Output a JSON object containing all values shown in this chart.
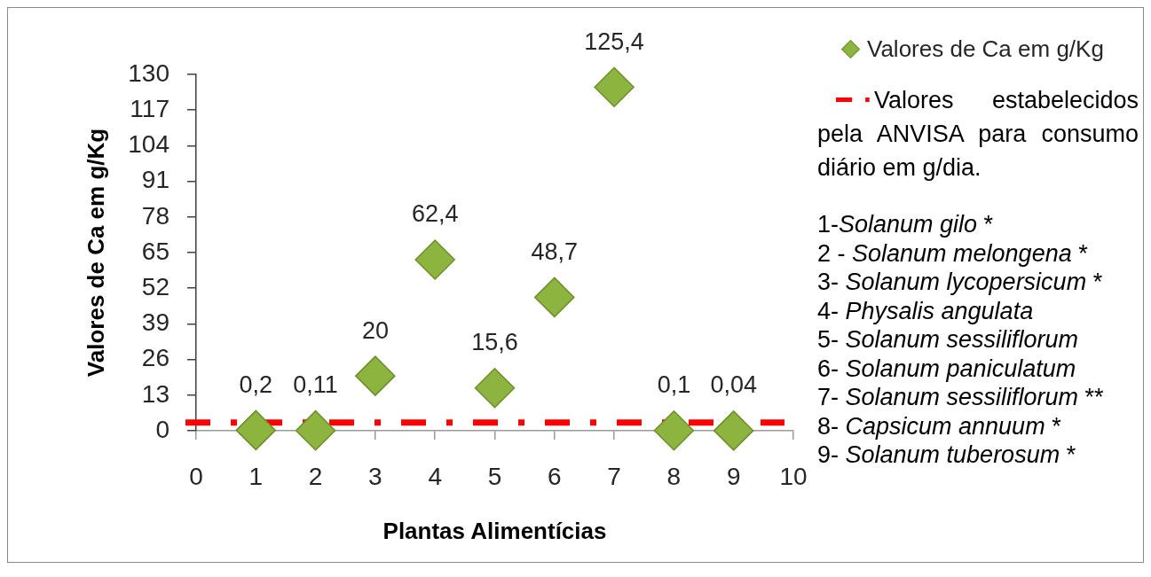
{
  "chart_data": {
    "type": "scatter",
    "xlabel": "Plantas Alimentícias",
    "ylabel": "Valores de Ca em g/Kg",
    "x": [
      1,
      2,
      3,
      4,
      5,
      6,
      7,
      8,
      9
    ],
    "series": [
      {
        "name": "Valores de Ca em g/Kg",
        "color": "#8db43e",
        "values": [
          0.2,
          0.11,
          20,
          62.4,
          15.6,
          48.7,
          125.4,
          0.1,
          0.04
        ],
        "value_labels": [
          "0,2",
          "0,11",
          "20",
          "62,4",
          "15,6",
          "48,7",
          "125,4",
          "0,1",
          "0,04"
        ]
      }
    ],
    "marker": "diamond",
    "xlim": [
      0,
      10
    ],
    "xticks": [
      0,
      1,
      2,
      3,
      4,
      5,
      6,
      7,
      8,
      9,
      10
    ],
    "ylim": [
      0,
      130
    ],
    "yticks": [
      0,
      13,
      26,
      39,
      52,
      65,
      78,
      91,
      104,
      117,
      130
    ],
    "legend": "right",
    "ref_lines": [
      {
        "axis": "y",
        "value": 3,
        "label": "Valores estabelecidos pela ANVISA para consumo diário em g/dia.",
        "color": "#ff0000",
        "line_style": "dashdot"
      }
    ],
    "annotations": [
      "1-Solanum gilo *",
      "2 - Solanum melongena *",
      "3- Solanum lycopersicum *",
      "4- Physalis angulata",
      "5- Solanum sessiliflorum",
      "6- Solanum paniculatum",
      "7- Solanum sessiliflorum **",
      "8- Capsicum annuum *",
      "9- Solanum tuberosum *"
    ]
  }
}
